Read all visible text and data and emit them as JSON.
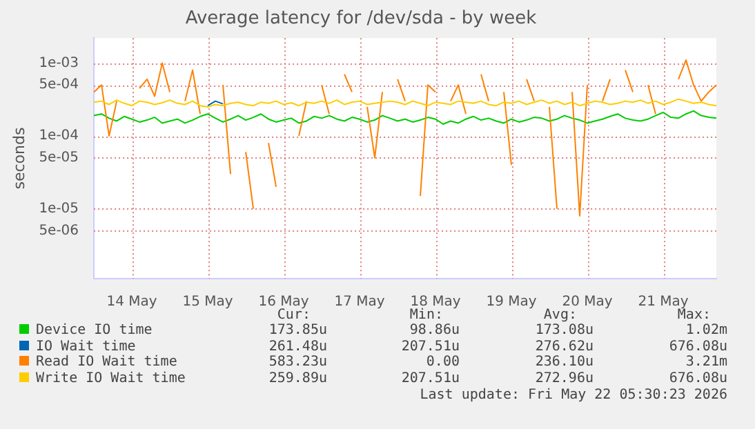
{
  "chart_data": {
    "type": "line",
    "title": "Average latency for /dev/sda - by week",
    "ylabel": "seconds",
    "log": "y",
    "grid": true,
    "legend": "bottom",
    "marker": "none",
    "line_style": "solid",
    "categories": [
      null,
      null,
      null,
      null,
      null,
      "14 May",
      null,
      null,
      null,
      null,
      null,
      null,
      null,
      null,
      null,
      "15 May",
      null,
      null,
      null,
      null,
      null,
      null,
      null,
      null,
      null,
      "16 May",
      null,
      null,
      null,
      null,
      null,
      null,
      null,
      null,
      null,
      "17 May",
      null,
      null,
      null,
      null,
      null,
      null,
      null,
      null,
      null,
      "18 May",
      null,
      null,
      null,
      null,
      null,
      null,
      null,
      null,
      null,
      "19 May",
      null,
      null,
      null,
      null,
      null,
      null,
      null,
      null,
      null,
      "20 May",
      null,
      null,
      null,
      null,
      null,
      null,
      null,
      null,
      null,
      "21 May",
      null,
      null,
      null,
      null,
      null,
      null,
      null
    ],
    "ylim": [
      1.1e-06,
      0.0022
    ],
    "yticks": [
      {
        "value": 5e-06,
        "label": "5e-06"
      },
      {
        "value": 1e-05,
        "label": "1e-05"
      },
      {
        "value": 5e-05,
        "label": "5e-05"
      },
      {
        "value": 0.0001,
        "label": "1e-04"
      },
      {
        "value": 0.0005,
        "label": "5e-04"
      },
      {
        "value": 0.001,
        "label": "1e-03"
      }
    ],
    "series": [
      {
        "name": "Device IO time",
        "color": "#00cc00",
        "values": [
          0.00019,
          0.0002,
          0.000175,
          0.00016,
          0.000185,
          0.00017,
          0.000155,
          0.000165,
          0.00018,
          0.00015,
          0.00016,
          0.00017,
          0.00015,
          0.000165,
          0.000185,
          0.0002,
          0.000175,
          0.000155,
          0.00017,
          0.00019,
          0.000165,
          0.00018,
          0.0002,
          0.00017,
          0.000155,
          0.000165,
          0.000175,
          0.00015,
          0.00016,
          0.000185,
          0.000175,
          0.00019,
          0.00017,
          0.00016,
          0.00018,
          0.00017,
          0.000155,
          0.000165,
          0.00019,
          0.000175,
          0.00016,
          0.00017,
          0.000155,
          0.000165,
          0.00018,
          0.00017,
          0.000145,
          0.00016,
          0.00015,
          0.00017,
          0.000185,
          0.000165,
          0.000175,
          0.00016,
          0.00015,
          0.00017,
          0.000155,
          0.000165,
          0.00018,
          0.000175,
          0.00016,
          0.00017,
          0.00019,
          0.000175,
          0.000165,
          0.00015,
          0.00016,
          0.00017,
          0.000185,
          0.0002,
          0.000175,
          0.000165,
          0.00016,
          0.00017,
          0.00019,
          0.00021,
          0.00018,
          0.000175,
          0.0002,
          0.00022,
          0.00019,
          0.00018,
          0.000175
        ]
      },
      {
        "name": "IO Wait time",
        "color": "#0066b3",
        "values": [
          null,
          null,
          null,
          null,
          null,
          null,
          null,
          null,
          null,
          null,
          null,
          null,
          null,
          null,
          null,
          0.00026,
          0.0003,
          0.000275,
          null,
          null,
          null,
          null,
          null,
          null,
          null,
          null,
          null,
          null,
          null,
          null,
          null,
          null,
          null,
          null,
          null,
          null,
          null,
          null,
          null,
          null,
          null,
          null,
          null,
          null,
          null,
          null,
          null,
          null,
          null,
          null,
          null,
          null,
          null,
          null,
          null,
          null,
          null,
          null,
          null,
          null,
          null,
          null,
          null,
          null,
          null,
          null,
          null,
          null,
          null,
          null,
          null,
          null,
          null,
          null,
          null,
          null,
          null,
          null,
          null,
          null,
          null,
          null,
          null
        ]
      },
      {
        "name": "Read IO Wait time",
        "color": "#ff8000",
        "values": [
          0.0004,
          0.0005,
          0.0001,
          0.0003,
          null,
          null,
          0.00045,
          0.0006,
          0.00035,
          0.001,
          0.0004,
          null,
          0.0003,
          0.0008,
          0.0002,
          null,
          null,
          0.0005,
          3e-05,
          null,
          6e-05,
          1e-05,
          null,
          8e-05,
          2e-05,
          null,
          null,
          0.0001,
          0.0003,
          null,
          0.0005,
          0.0002,
          null,
          0.0007,
          0.0004,
          null,
          0.00025,
          5e-05,
          0.0004,
          null,
          0.0006,
          0.0003,
          null,
          1.5e-05,
          0.0005,
          0.0004,
          null,
          0.0003,
          0.0005,
          0.0002,
          null,
          0.0007,
          0.0003,
          null,
          0.0004,
          4e-05,
          null,
          0.0006,
          0.0003,
          null,
          0.00025,
          1e-05,
          null,
          0.0004,
          8e-06,
          0.0005,
          null,
          0.0003,
          0.0006,
          null,
          0.0008,
          0.0004,
          null,
          0.0005,
          0.0002,
          null,
          null,
          0.0006,
          0.0011,
          0.0005,
          0.0003,
          0.0004,
          0.0005
        ]
      },
      {
        "name": "Write IO Wait time",
        "color": "#ffcc00",
        "values": [
          0.00029,
          0.0003,
          0.00027,
          0.00031,
          0.00028,
          0.00026,
          0.0003,
          0.00029,
          0.00027,
          0.000285,
          0.00031,
          0.00028,
          0.00027,
          0.0003,
          0.00026,
          0.00025,
          0.00027,
          0.00026,
          0.00028,
          0.00029,
          0.00027,
          0.00026,
          0.00029,
          0.00028,
          0.0003,
          0.00027,
          0.000285,
          0.00026,
          0.00029,
          0.00028,
          0.0003,
          0.00028,
          0.00031,
          0.00027,
          0.00029,
          0.0003,
          0.00027,
          0.00028,
          0.00029,
          0.0003,
          0.00029,
          0.00027,
          0.0003,
          0.00028,
          0.00026,
          0.00029,
          0.00028,
          0.00027,
          0.0003,
          0.00029,
          0.00028,
          0.0003,
          0.00027,
          0.00026,
          0.00029,
          0.00028,
          0.0003,
          0.00027,
          0.00029,
          0.00031,
          0.00028,
          0.0003,
          0.00027,
          0.00029,
          0.00026,
          0.00028,
          0.0003,
          0.00029,
          0.00027,
          0.00028,
          0.0003,
          0.00029,
          0.00031,
          0.00028,
          0.0003,
          0.00027,
          0.00029,
          0.00032,
          0.0003,
          0.00028,
          0.00029,
          0.00027,
          0.00026
        ]
      }
    ],
    "annotations": [
      "Cur:",
      "Min:",
      "Avg:",
      "Max:",
      "173.85u",
      "98.86u",
      "173.08u",
      "1.02m",
      "261.48u",
      "207.51u",
      "276.62u",
      "676.08u",
      "583.23u",
      "0.00",
      "236.10u",
      "3.21m",
      "259.89u",
      "207.51u",
      "272.96u",
      "676.08u",
      "Last update: Fri May 22 05:30:23 2026"
    ]
  }
}
